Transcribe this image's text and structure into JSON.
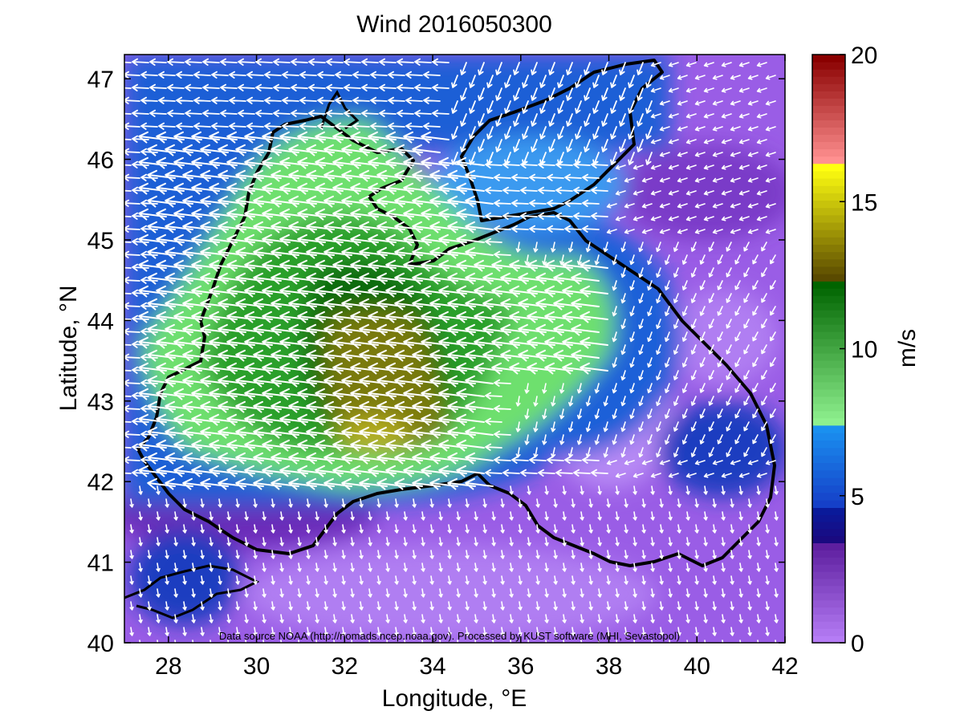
{
  "title": "Wind 2016050300",
  "map": {
    "xlabel": "Longitude, °E",
    "ylabel": "Latitude, °N",
    "x_ticks": [
      "28",
      "30",
      "32",
      "34",
      "36",
      "38",
      "40",
      "42"
    ],
    "y_ticks": [
      "40",
      "41",
      "42",
      "43",
      "44",
      "45",
      "46",
      "47"
    ],
    "xlim": [
      27,
      42
    ],
    "ylim": [
      40,
      47.3
    ],
    "attribution": "Data source NOAA (http://nomads.ncep.noaa.gov). Processed by KUST software (MHI, Sevastopol)"
  },
  "colorbar": {
    "label": "m/s",
    "ticks": [
      "0",
      "5",
      "10",
      "15",
      "20"
    ],
    "range": [
      0,
      20
    ],
    "segments": [
      {
        "from": 0,
        "to": 3.4,
        "color_low": "#b57cf5",
        "color_high": "#5e1f9f"
      },
      {
        "from": 3.4,
        "to": 4.6,
        "color_low": "#1a0a80",
        "color_high": "#0a1a9a"
      },
      {
        "from": 4.6,
        "to": 7.4,
        "color_low": "#1540c8",
        "color_high": "#1a90f0"
      },
      {
        "from": 7.4,
        "to": 12.3,
        "color_low": "#8ef08e",
        "color_high": "#006400"
      },
      {
        "from": 12.3,
        "to": 16.3,
        "color_low": "#5a4a00",
        "color_high": "#ffff10"
      },
      {
        "from": 16.3,
        "to": 20,
        "color_low": "#ff9090",
        "color_high": "#8a0000"
      }
    ]
  },
  "chart_data": {
    "type": "heatmap",
    "variable": "wind speed",
    "unit": "m/s",
    "regions": [
      {
        "lon": 32.5,
        "lat": 43.0,
        "speed": 13
      },
      {
        "lon": 31.0,
        "lat": 44.5,
        "speed": 10
      },
      {
        "lon": 30.0,
        "lat": 43.0,
        "speed": 10
      },
      {
        "lon": 36.5,
        "lat": 43.8,
        "speed": 9
      },
      {
        "lon": 36.0,
        "lat": 46.2,
        "speed": 6
      },
      {
        "lon": 40.0,
        "lat": 43.0,
        "speed": 2
      },
      {
        "lon": 38.0,
        "lat": 41.0,
        "speed": 1.5
      },
      {
        "lon": 28.5,
        "lat": 40.8,
        "speed": 3
      }
    ]
  }
}
